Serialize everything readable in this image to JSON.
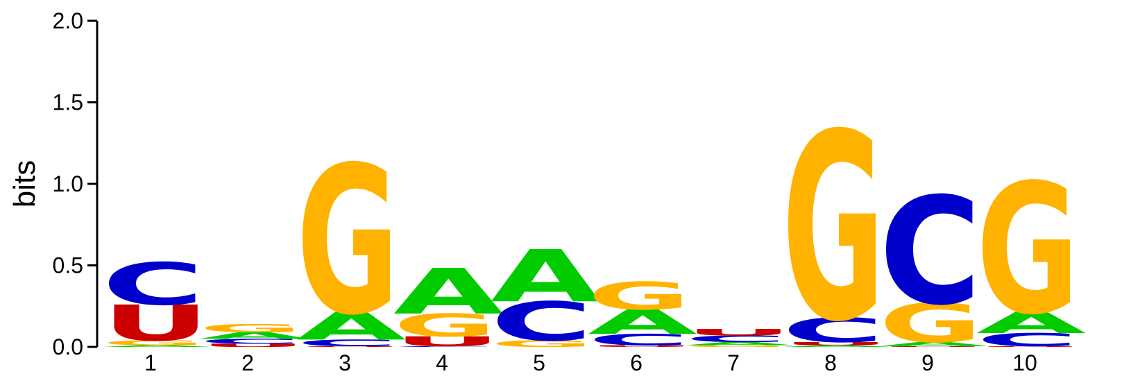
{
  "chart_data": {
    "type": "sequence_logo",
    "ylabel": "bits",
    "ylim": [
      0,
      2.0
    ],
    "yticks": [
      {
        "value": 0.0,
        "label": "0.0"
      },
      {
        "value": 0.5,
        "label": "0.5"
      },
      {
        "value": 1.0,
        "label": "1.0"
      },
      {
        "value": 1.5,
        "label": "1.5"
      },
      {
        "value": 2.0,
        "label": "2.0"
      }
    ],
    "positions": [
      "1",
      "2",
      "3",
      "4",
      "5",
      "6",
      "7",
      "8",
      "9",
      "10"
    ],
    "alphabet_colors": {
      "A": "#00cc00",
      "C": "#0000cc",
      "G": "#ffb300",
      "U": "#cc0000"
    },
    "columns": [
      [
        {
          "letter": "A",
          "height": 0.01
        },
        {
          "letter": "G",
          "height": 0.03
        },
        {
          "letter": "U",
          "height": 0.22
        },
        {
          "letter": "C",
          "height": 0.26
        }
      ],
      [
        {
          "letter": "U",
          "height": 0.02
        },
        {
          "letter": "C",
          "height": 0.03
        },
        {
          "letter": "A",
          "height": 0.04
        },
        {
          "letter": "G",
          "height": 0.05
        }
      ],
      [
        {
          "letter": "U",
          "height": 0.005
        },
        {
          "letter": "C",
          "height": 0.04
        },
        {
          "letter": "A",
          "height": 0.17
        },
        {
          "letter": "G",
          "height": 0.91
        }
      ],
      [
        {
          "letter": "C",
          "height": 0.005
        },
        {
          "letter": "U",
          "height": 0.06
        },
        {
          "letter": "G",
          "height": 0.14
        },
        {
          "letter": "A",
          "height": 0.28
        }
      ],
      [
        {
          "letter": "G",
          "height": 0.04
        },
        {
          "letter": "C",
          "height": 0.24
        },
        {
          "letter": "A",
          "height": 0.32
        }
      ],
      [
        {
          "letter": "U",
          "height": 0.01
        },
        {
          "letter": "C",
          "height": 0.07
        },
        {
          "letter": "A",
          "height": 0.15
        },
        {
          "letter": "G",
          "height": 0.17
        }
      ],
      [
        {
          "letter": "G",
          "height": 0.01
        },
        {
          "letter": "A",
          "height": 0.02
        },
        {
          "letter": "C",
          "height": 0.04
        },
        {
          "letter": "U",
          "height": 0.04
        }
      ],
      [
        {
          "letter": "A",
          "height": 0.01
        },
        {
          "letter": "U",
          "height": 0.02
        },
        {
          "letter": "C",
          "height": 0.15
        },
        {
          "letter": "G",
          "height": 1.15
        }
      ],
      [
        {
          "letter": "U",
          "height": 0.005
        },
        {
          "letter": "A",
          "height": 0.025
        },
        {
          "letter": "G",
          "height": 0.24
        },
        {
          "letter": "C",
          "height": 0.66
        }
      ],
      [
        {
          "letter": "U",
          "height": 0.005
        },
        {
          "letter": "C",
          "height": 0.08
        },
        {
          "letter": "A",
          "height": 0.13
        },
        {
          "letter": "G",
          "height": 0.8
        }
      ]
    ]
  }
}
